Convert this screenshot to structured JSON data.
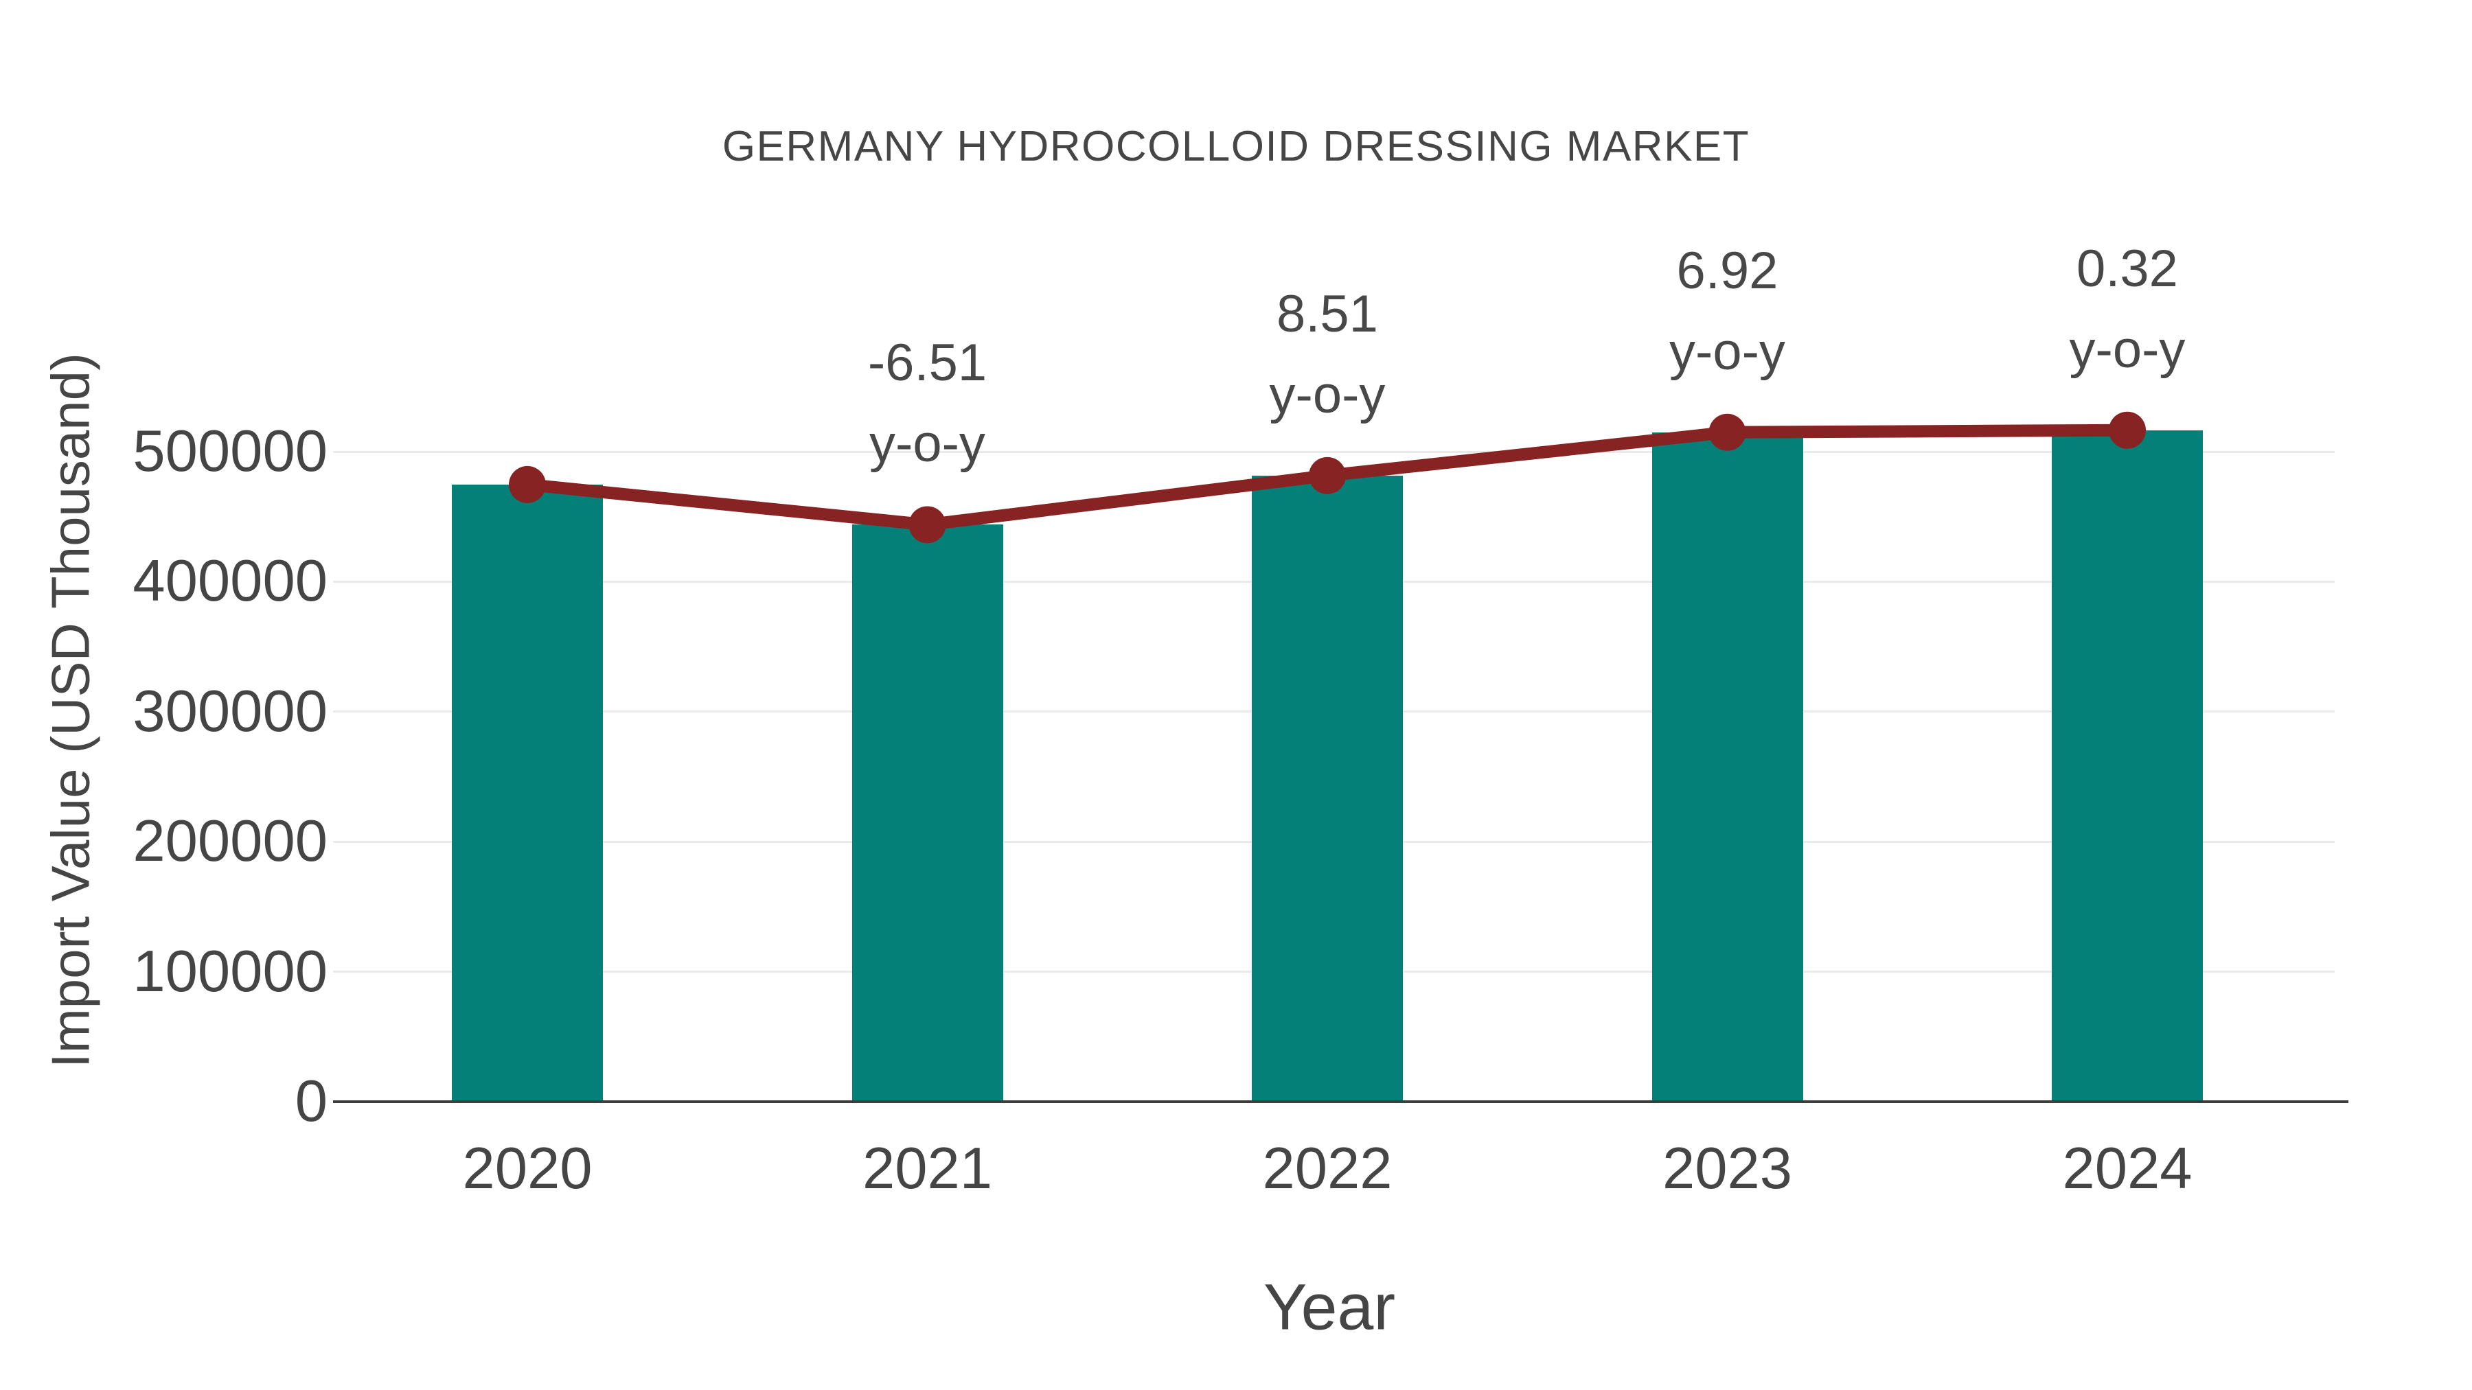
{
  "chart_data": {
    "type": "bar",
    "title": "GERMANY HYDROCOLLOID DRESSING MARKET",
    "xlabel": "Year",
    "ylabel": "Import Value (USD Thousand)",
    "categories": [
      "2020",
      "2021",
      "2022",
      "2023",
      "2024"
    ],
    "series": [
      {
        "name": "Import Value",
        "type": "bar",
        "color": "#048079",
        "values": [
          474700,
          443800,
          481600,
          514900,
          516500
        ]
      },
      {
        "name": "Import Value trend",
        "type": "line",
        "color": "#872423",
        "values": [
          474700,
          443800,
          481600,
          514900,
          516500
        ]
      }
    ],
    "annotations": [
      {
        "category": "2021",
        "value": "-6.51",
        "suffix": "y-o-y"
      },
      {
        "category": "2022",
        "value": "8.51",
        "suffix": "y-o-y"
      },
      {
        "category": "2023",
        "value": "6.92",
        "suffix": "y-o-y"
      },
      {
        "category": "2024",
        "value": "0.32",
        "suffix": "y-o-y"
      }
    ],
    "ylim": [
      0,
      500000
    ],
    "yticks": [
      0,
      100000,
      200000,
      300000,
      400000,
      500000
    ],
    "grid": "horizontal",
    "legend_position": "none"
  },
  "colors": {
    "bar": "#048079",
    "line": "#872423",
    "marker": "#872423",
    "text": "#454545",
    "annotation_text": "#484848",
    "gridline": "#eaeaea",
    "axis_line": "#3d3d3d",
    "background": "#ffffff"
  }
}
